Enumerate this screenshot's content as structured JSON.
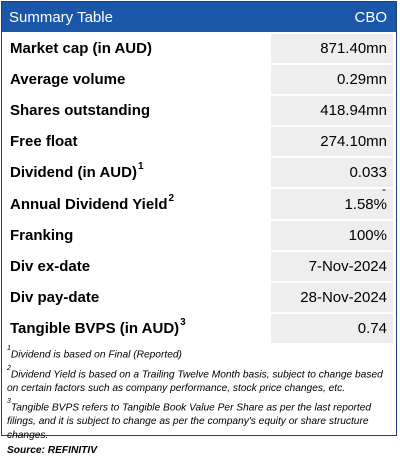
{
  "header": {
    "title": "Summary Table",
    "ticker": "CBO"
  },
  "rows": [
    {
      "label": "Market cap (in AUD)",
      "sup": "",
      "value": "871.40mn",
      "dash": ""
    },
    {
      "label": "Average volume",
      "sup": "",
      "value": "0.29mn",
      "dash": ""
    },
    {
      "label": "Shares outstanding",
      "sup": "",
      "value": "418.94mn",
      "dash": ""
    },
    {
      "label": "Free float",
      "sup": "",
      "value": "274.10mn",
      "dash": ""
    },
    {
      "label": "Dividend (in AUD)",
      "sup": "1",
      "value": "0.033",
      "dash": ""
    },
    {
      "label": "Annual Dividend Yield",
      "sup": "2",
      "value": "1.58%",
      "dash": "-"
    },
    {
      "label": "Franking",
      "sup": "",
      "value": "100%",
      "dash": ""
    },
    {
      "label": "Div ex-date",
      "sup": "",
      "value": "7-Nov-2024",
      "dash": ""
    },
    {
      "label": "Div pay-date",
      "sup": "",
      "value": "28-Nov-2024",
      "dash": ""
    },
    {
      "label": "Tangible BVPS (in AUD)",
      "sup": "3",
      "value": "0.74",
      "dash": ""
    }
  ],
  "footnotes": [
    {
      "num": "1",
      "text": "Dividend is based on Final (Reported)"
    },
    {
      "num": "2",
      "text": "Dividend Yield is based on a Trailing Twelve Month basis, subject to change based on certain factors such as company performance, stock price changes, etc."
    },
    {
      "num": "3",
      "text": "Tangible BVPS refers to Tangible Book Value Per Share as per the last reported filings, and it is subject to change as per the company's equity or share structure changes."
    }
  ],
  "source": "Source: REFINITIV"
}
